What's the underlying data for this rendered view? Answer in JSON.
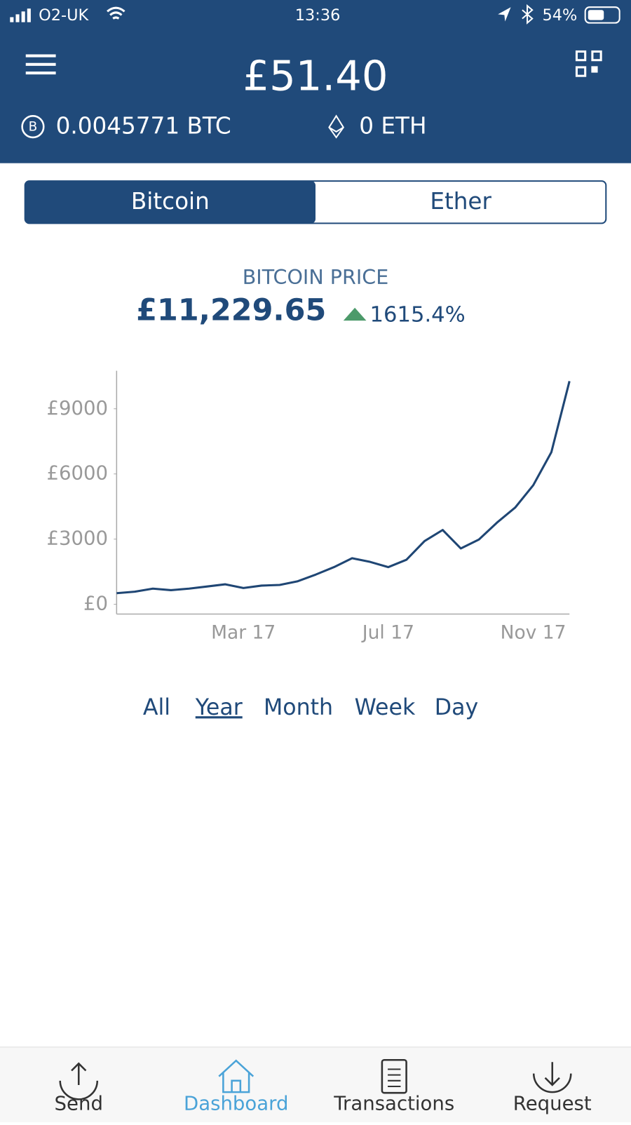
{
  "status_bar": {
    "carrier": "O2-UK",
    "time": "13:36",
    "battery": "54%"
  },
  "header": {
    "balance": "£51.40",
    "btc": "0.0045771 BTC",
    "eth": "0 ETH"
  },
  "tabs": {
    "items": [
      "Bitcoin",
      "Ether"
    ],
    "selected": "Bitcoin"
  },
  "price": {
    "label": "BITCOIN PRICE",
    "value": "£11,229.65",
    "change": "1615.4%"
  },
  "chart_data": {
    "type": "line",
    "color": "#1f4674",
    "categories": [
      null,
      null,
      null,
      null,
      null,
      null,
      null,
      "Mar 17",
      null,
      null,
      null,
      null,
      null,
      null,
      null,
      "Jul 17",
      null,
      null,
      null,
      null,
      null,
      null,
      null,
      "Nov 17",
      null,
      null
    ],
    "values": [
      510,
      580,
      720,
      650,
      720,
      820,
      920,
      750,
      860,
      890,
      1060,
      1370,
      1710,
      2120,
      1950,
      1710,
      2050,
      2910,
      3420,
      2570,
      2980,
      3760,
      4450,
      5480,
      7000,
      10270
    ],
    "ylim": [
      -450,
      10750
    ],
    "yticks": [
      {
        "value": 0,
        "label": "£0"
      },
      {
        "value": 3000,
        "label": "£3000"
      },
      {
        "value": 6000,
        "label": "£6000"
      },
      {
        "value": 9000,
        "label": "£9000"
      }
    ]
  },
  "ranges": {
    "items": [
      "All",
      "Year",
      "Month",
      "Week",
      "Day"
    ],
    "selected": "Year"
  },
  "nav": {
    "items": [
      "Send",
      "Dashboard",
      "Transactions",
      "Request"
    ],
    "selected": "Dashboard"
  }
}
